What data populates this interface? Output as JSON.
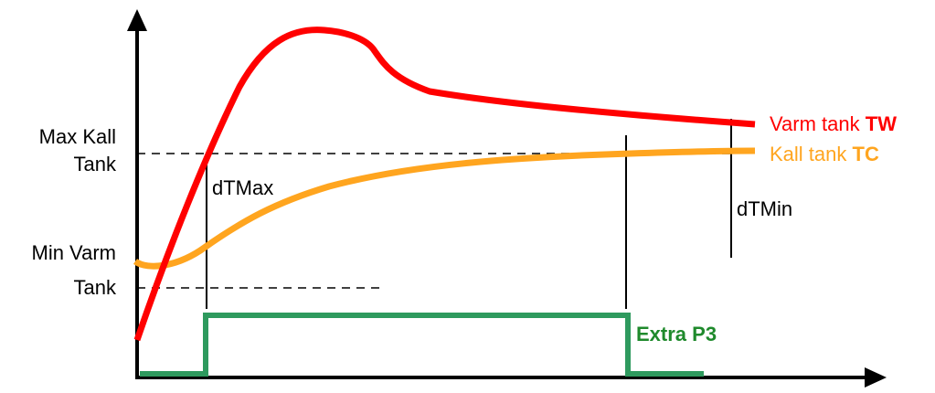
{
  "labels": {
    "max_kall_tank_line1": "Max Kall",
    "max_kall_tank_line2": "Tank",
    "min_varm_tank_line1": "Min Varm",
    "min_varm_tank_line2": "Tank",
    "dtmax": "dTMax",
    "dtmin": "dTMin"
  },
  "legend": {
    "varm": {
      "prefix": "Varm tank ",
      "bold": "TW"
    },
    "kall": {
      "prefix": "Kall tank ",
      "bold": "TC"
    },
    "extra": "Extra P3"
  },
  "colors": {
    "varm": "#ff0000",
    "kall": "#ffa51f",
    "extra": "#2e9a5e",
    "extra_text": "#1f8a2c",
    "axis": "#000000"
  }
}
